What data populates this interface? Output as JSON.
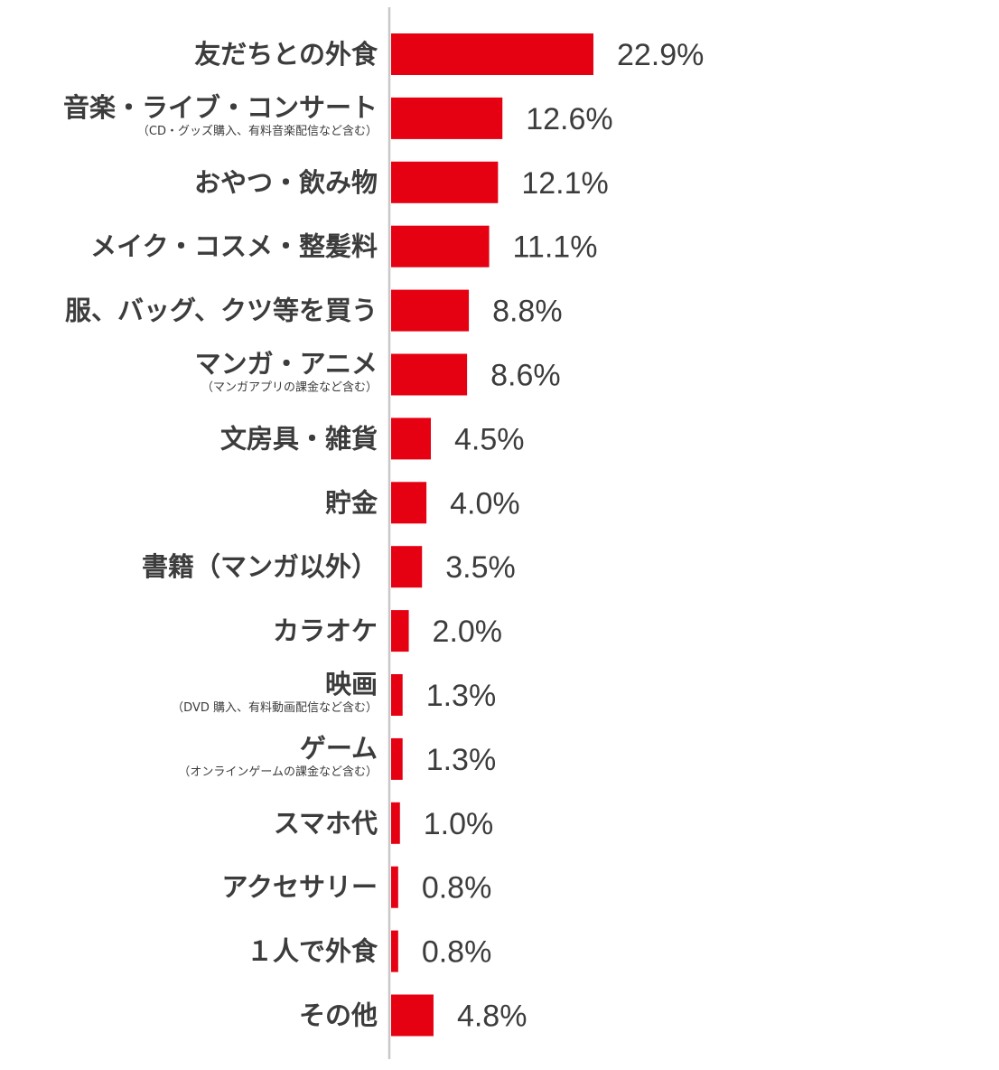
{
  "chart_data": {
    "type": "bar",
    "orientation": "horizontal",
    "title": "",
    "xlabel": "",
    "ylabel": "",
    "xlim": [
      0,
      100
    ],
    "grid": false,
    "legend": "none",
    "bar_color": "#e50012",
    "axis_color": "#c8c8c8",
    "text_color": "#3c3c3c",
    "value_suffix": "%",
    "categories": [
      {
        "label": "友だちとの外食",
        "sub": ""
      },
      {
        "label": "音楽・ライブ・コンサート",
        "sub": "（CD・グッズ購入、有料音楽配信など含む）"
      },
      {
        "label": "おやつ・飲み物",
        "sub": ""
      },
      {
        "label": "メイク・コスメ・整髪料",
        "sub": ""
      },
      {
        "label": "服、バッグ、クツ等を買う",
        "sub": ""
      },
      {
        "label": "マンガ・アニメ",
        "sub": "（マンガアプリの課金など含む）"
      },
      {
        "label": "文房具・雑貨",
        "sub": ""
      },
      {
        "label": "貯金",
        "sub": ""
      },
      {
        "label": "書籍（マンガ以外）",
        "sub": ""
      },
      {
        "label": "カラオケ",
        "sub": ""
      },
      {
        "label": "映画",
        "sub": "（DVD 購入、有料動画配信など含む）"
      },
      {
        "label": "ゲーム",
        "sub": "（オンラインゲームの課金など含む）"
      },
      {
        "label": "スマホ代",
        "sub": ""
      },
      {
        "label": "アクセサリー",
        "sub": ""
      },
      {
        "label": "１人で外食",
        "sub": ""
      },
      {
        "label": "その他",
        "sub": ""
      }
    ],
    "values": [
      22.9,
      12.6,
      12.1,
      11.1,
      8.8,
      8.6,
      4.5,
      4.0,
      3.5,
      2.0,
      1.3,
      1.3,
      1.0,
      0.8,
      0.8,
      4.8
    ],
    "value_labels": [
      "22.9%",
      "12.6%",
      "12.1%",
      "11.1%",
      "8.8%",
      "8.6%",
      "4.5%",
      "4.0%",
      "3.5%",
      "2.0%",
      "1.3%",
      "1.3%",
      "1.0%",
      "0.8%",
      "0.8%",
      "4.8%"
    ]
  }
}
